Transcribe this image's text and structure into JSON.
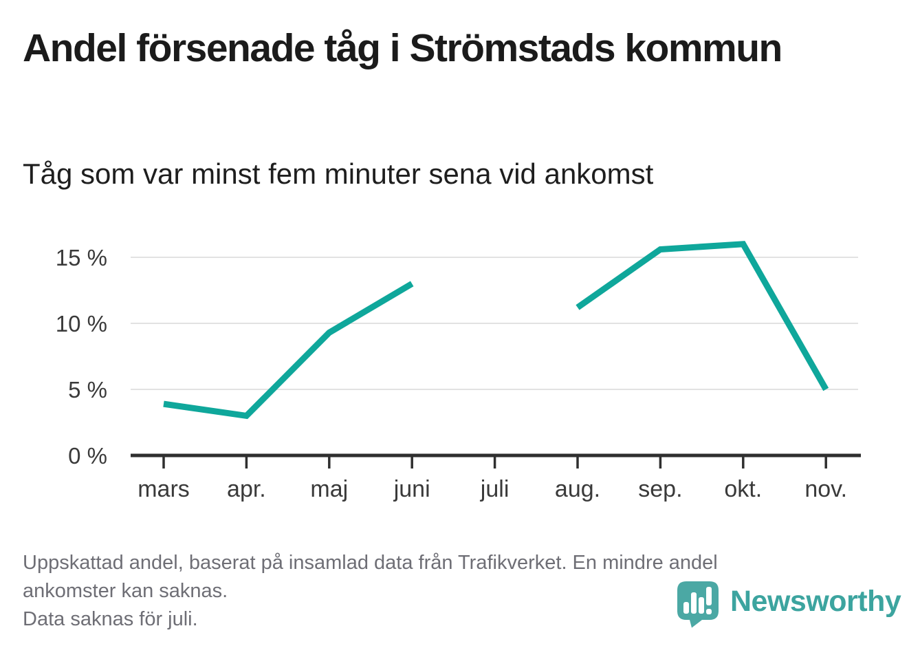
{
  "header": {
    "title": "Andel försenade tåg i Strömstads kommun",
    "subtitle": "Tåg som var minst fem minuter sena vid ankomst"
  },
  "footer": {
    "lines": [
      "Uppskattad andel, baserat på insamlad data från Trafikverket. En mindre andel",
      "ankomster kan saknas.",
      "Data saknas för juli."
    ]
  },
  "branding": {
    "name": "Newsworthy",
    "icon": "newsworthy-chart-bubble-icon",
    "icon_color": "#4ba8a4",
    "text_color": "#3ca49f"
  },
  "chart_data": {
    "type": "line",
    "title": "Andel försenade tåg i Strömstads kommun",
    "subtitle": "Tåg som var minst fem minuter sena vid ankomst",
    "x": [
      "mars",
      "apr.",
      "maj",
      "juni",
      "juli",
      "aug.",
      "sep.",
      "okt.",
      "nov."
    ],
    "series": [
      {
        "name": "Andel försenade tåg (minst fem minuter sena vid ankomst)",
        "color": "#0fa79b",
        "values": [
          3.9,
          3.0,
          9.3,
          13.0,
          null,
          11.2,
          15.6,
          16.0,
          5.0
        ]
      }
    ],
    "ylim": [
      0,
      17
    ],
    "yticks": [
      0,
      5,
      10,
      15
    ],
    "ytick_labels": [
      "0 %",
      "5 %",
      "10 %",
      "15 %"
    ],
    "xlabel": "",
    "ylabel": "",
    "grid": true,
    "legend": "none",
    "missing_data_note": "Data saknas för juli.",
    "colors": {
      "axis": "#2f2f2f",
      "gridline": "#e2e2e2",
      "tick_label": "#3a3a3a"
    }
  }
}
